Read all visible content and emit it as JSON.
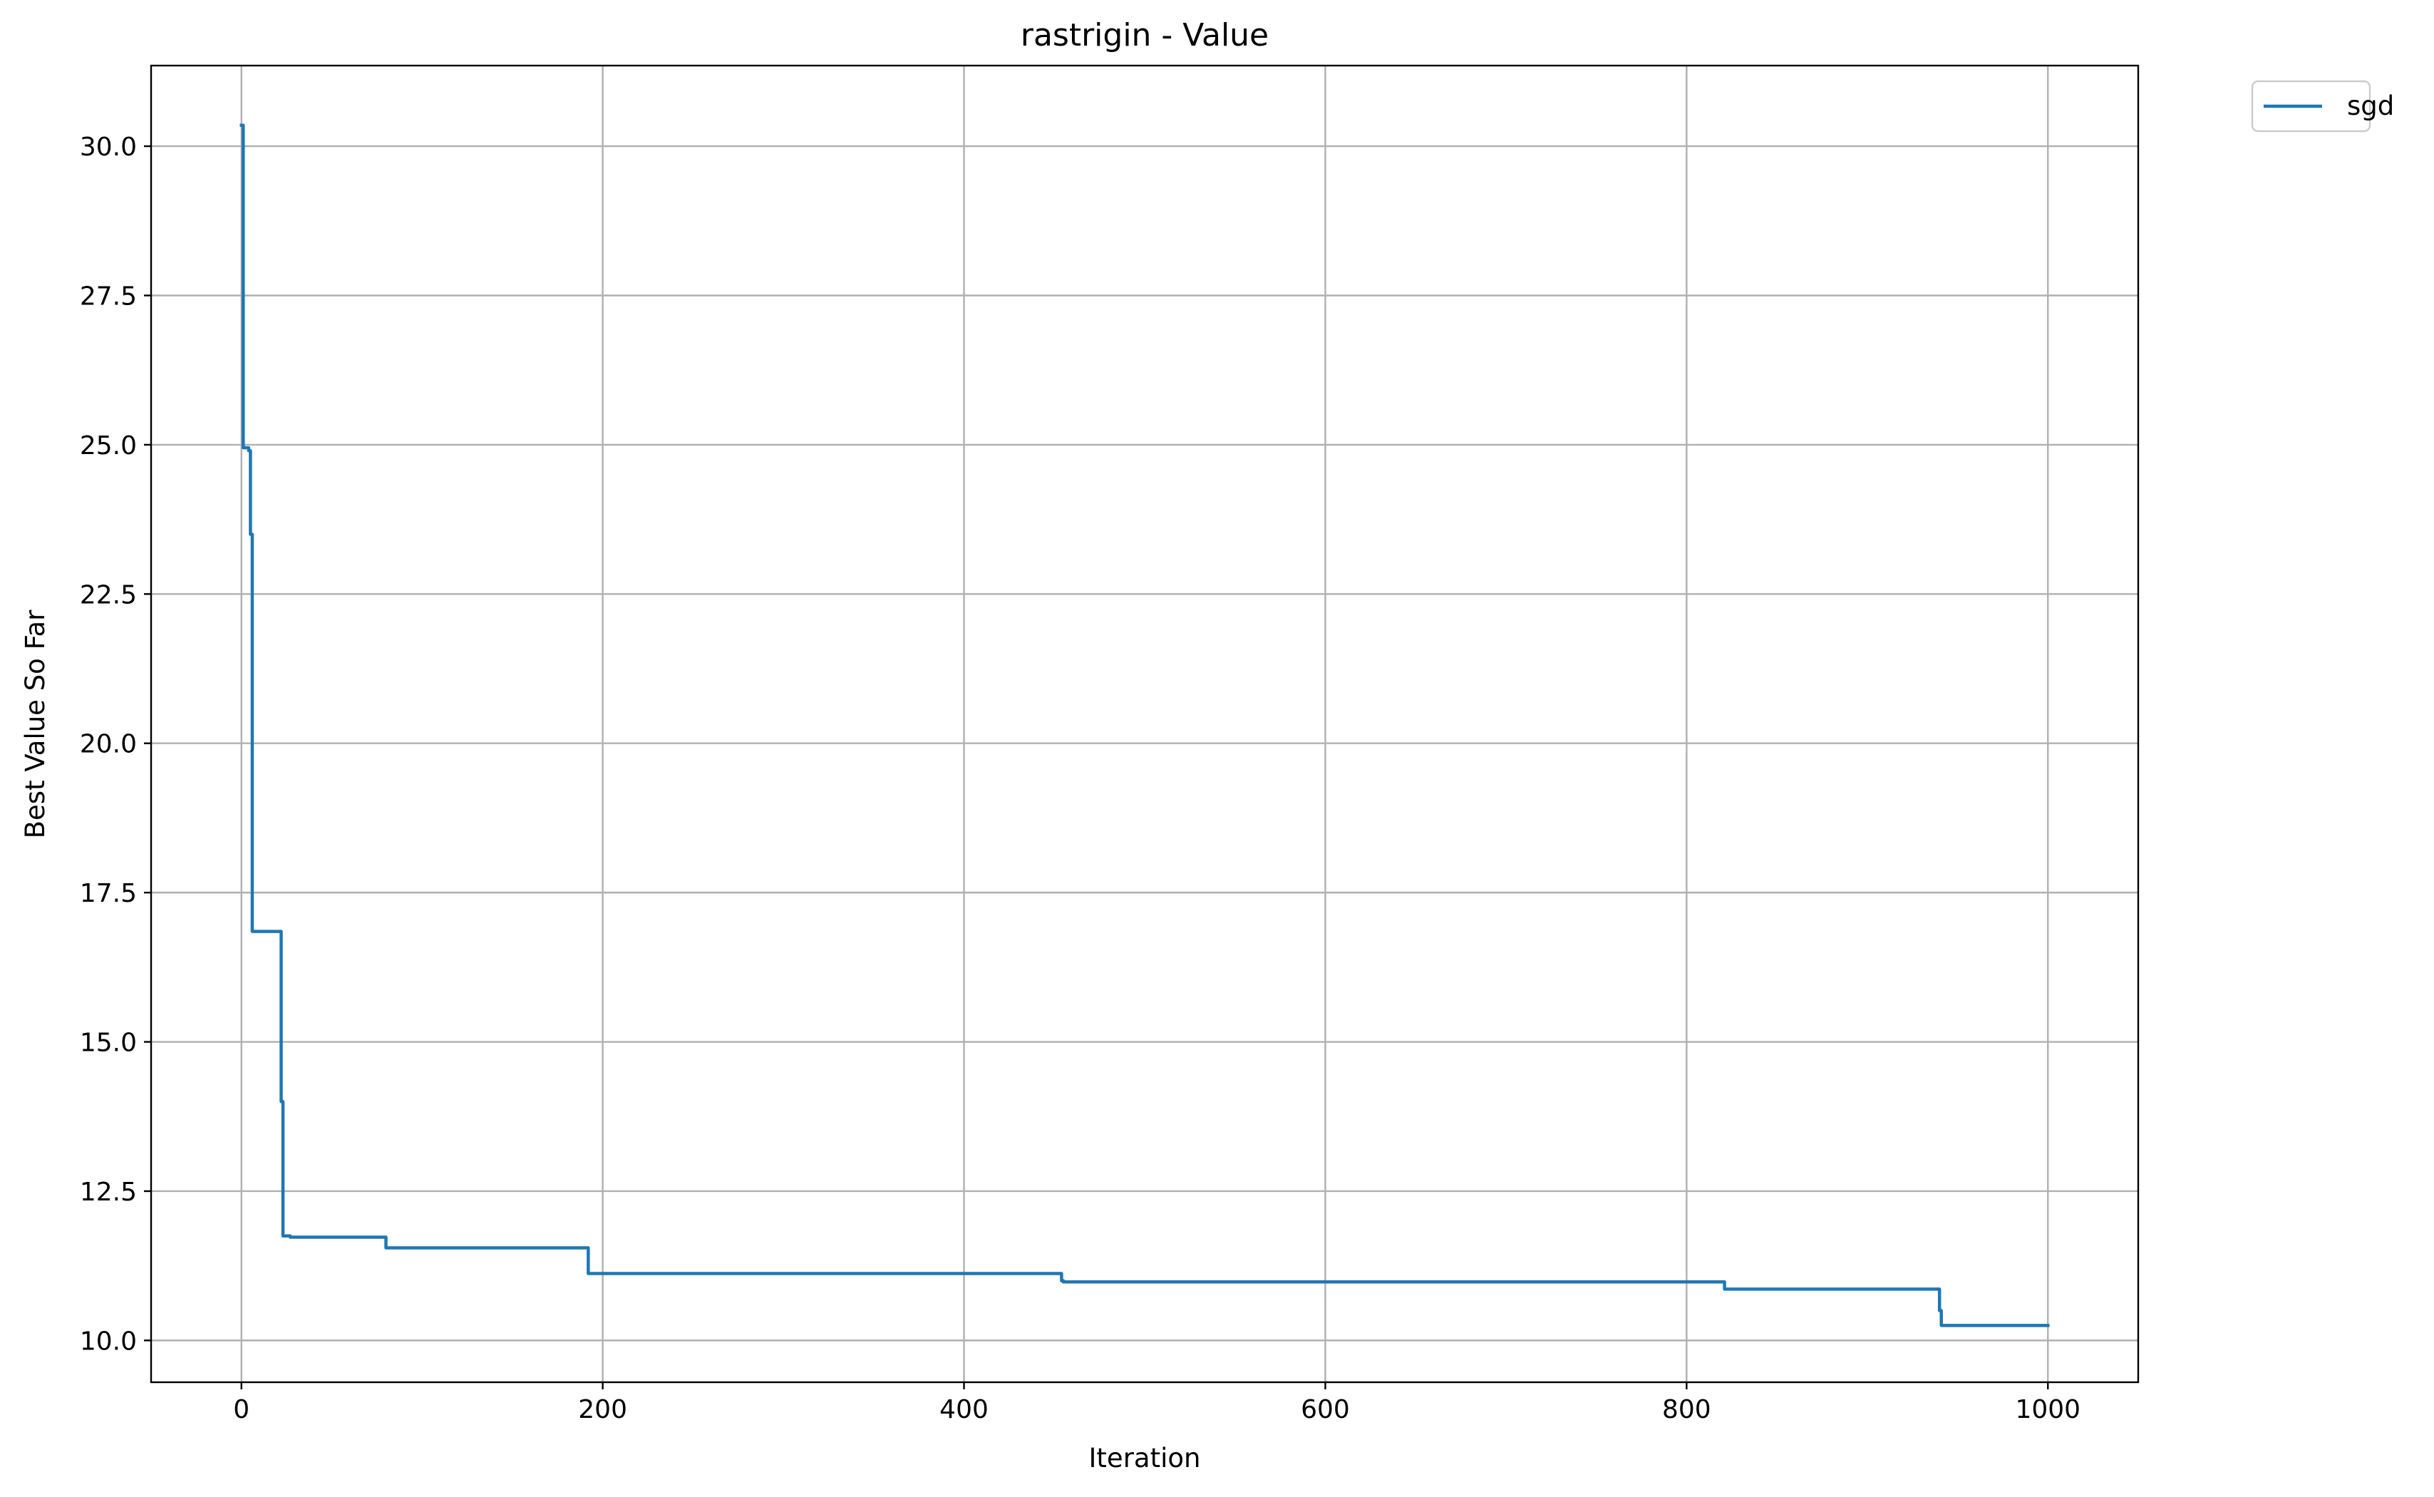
{
  "chart_data": {
    "type": "line",
    "title": "rastrigin - Value",
    "xlabel": "Iteration",
    "ylabel": "Best Value So Far",
    "xlim": [
      -50,
      1050
    ],
    "ylim": [
      9.3,
      31.35
    ],
    "xticks": [
      0,
      200,
      400,
      600,
      800,
      1000
    ],
    "yticks": [
      10.0,
      12.5,
      15.0,
      17.5,
      20.0,
      22.5,
      25.0,
      27.5,
      30.0
    ],
    "xtick_labels": [
      "0",
      "200",
      "400",
      "600",
      "800",
      "1000"
    ],
    "ytick_labels": [
      "10.0",
      "12.5",
      "15.0",
      "17.5",
      "20.0",
      "22.5",
      "25.0",
      "27.5",
      "30.0"
    ],
    "grid": true,
    "legend_position": "outside-top-right",
    "series": [
      {
        "name": "sgd",
        "color": "#1f77b4",
        "x": [
          0,
          1,
          1,
          4,
          4,
          5,
          5,
          6,
          6,
          7,
          7,
          22,
          22,
          23,
          23,
          26,
          26,
          27,
          27,
          80,
          80,
          81,
          81,
          192,
          192,
          193,
          193,
          454,
          454,
          455,
          455,
          821,
          821,
          822,
          822,
          940,
          940,
          941,
          941,
          1000
        ],
        "y": [
          30.35,
          30.35,
          24.95,
          24.95,
          24.9,
          24.9,
          23.5,
          23.5,
          16.85,
          16.85,
          16.85,
          16.85,
          14.0,
          14.0,
          11.75,
          11.75,
          11.75,
          11.75,
          11.73,
          11.73,
          11.55,
          11.55,
          11.55,
          11.55,
          11.12,
          11.12,
          11.12,
          11.12,
          11.0,
          11.0,
          10.98,
          10.98,
          10.86,
          10.86,
          10.86,
          10.86,
          10.5,
          10.5,
          10.25,
          10.25
        ]
      }
    ]
  }
}
